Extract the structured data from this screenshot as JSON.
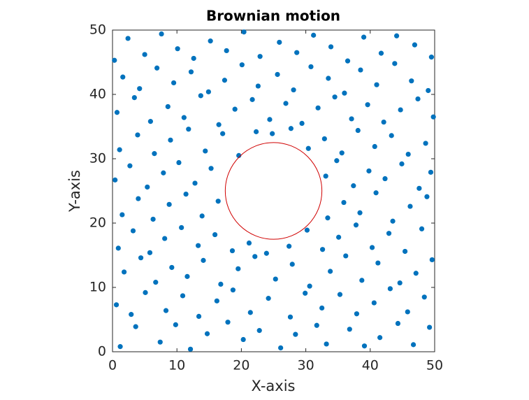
{
  "chart_data": {
    "type": "scatter",
    "title": "Brownian motion",
    "x_label": "X-axis",
    "y_label": "Y-axis",
    "xlim": [
      0,
      50
    ],
    "ylim": [
      0,
      50
    ],
    "xticks": [
      0,
      10,
      20,
      30,
      40,
      50
    ],
    "yticks": [
      0,
      10,
      20,
      30,
      40,
      50
    ],
    "color": "#0072bd",
    "x": [
      1.2,
      3.6,
      7.4,
      9.8,
      12.1,
      14.7,
      17.9,
      20.3,
      22.8,
      26.1,
      28.4,
      31.7,
      33.2,
      36.8,
      39.1,
      41.5,
      44.3,
      46.7,
      49.2,
      0.6,
      2.9,
      5.1,
      8.3,
      10.9,
      13.4,
      16.2,
      18.7,
      21.4,
      24.2,
      27.6,
      29.9,
      32.5,
      35.3,
      37.9,
      40.6,
      43.1,
      45.8,
      48.4,
      1.8,
      4.4,
      6.7,
      9.2,
      11.6,
      14.1,
      16.8,
      19.5,
      22.1,
      25.3,
      27.9,
      30.6,
      33.8,
      36.2,
      38.7,
      41.2,
      44.6,
      47.1,
      49.6,
      0.9,
      3.2,
      5.8,
      8.1,
      10.7,
      13.3,
      15.9,
      18.6,
      21.2,
      23.9,
      27.4,
      30.2,
      32.6,
      35.1,
      37.8,
      40.3,
      42.9,
      45.4,
      48.0,
      1.5,
      4.0,
      6.3,
      8.8,
      11.4,
      13.9,
      16.4,
      33.4,
      35.9,
      38.4,
      40.9,
      43.5,
      46.2,
      48.8,
      0.4,
      2.7,
      5.4,
      7.9,
      10.3,
      12.8,
      15.3,
      33.1,
      34.8,
      37.4,
      39.8,
      42.3,
      44.9,
      47.6,
      49.4,
      1.1,
      3.9,
      6.5,
      9.0,
      11.8,
      14.4,
      17.1,
      19.6,
      22.3,
      24.8,
      27.7,
      30.4,
      32.9,
      35.6,
      38.1,
      40.7,
      43.3,
      45.9,
      48.6,
      0.7,
      3.4,
      5.9,
      8.6,
      11.1,
      13.7,
      16.5,
      19.0,
      21.7,
      24.4,
      26.9,
      29.4,
      31.9,
      34.5,
      37.1,
      39.6,
      42.1,
      44.7,
      47.4,
      49.8,
      1.6,
      4.2,
      6.9,
      9.5,
      12.2,
      14.9,
      17.4,
      20.1,
      22.6,
      25.6,
      28.1,
      30.8,
      33.5,
      36.0,
      38.5,
      41.0,
      43.8,
      46.4,
      49.0,
      0.3,
      2.4,
      5.0,
      7.6,
      10.1,
      12.6,
      15.2,
      17.7,
      20.4,
      22.9,
      25.9,
      28.6,
      31.2,
      33.9,
      36.5,
      39.0,
      41.7,
      44.1,
      46.9,
      49.5
    ],
    "values": [
      0.8,
      3.9,
      1.5,
      4.2,
      0.4,
      2.8,
      4.6,
      1.9,
      3.3,
      0.6,
      2.7,
      4.1,
      1.2,
      3.5,
      0.9,
      2.2,
      4.4,
      1.1,
      3.8,
      7.3,
      5.8,
      9.2,
      6.4,
      8.7,
      5.5,
      7.9,
      9.6,
      6.1,
      8.3,
      5.4,
      9.1,
      6.8,
      8.9,
      5.9,
      7.6,
      9.8,
      6.2,
      8.5,
      12.4,
      14.6,
      10.8,
      13.1,
      11.7,
      14.2,
      10.5,
      12.9,
      14.8,
      11.3,
      13.6,
      10.2,
      12.5,
      14.9,
      11.1,
      13.8,
      10.7,
      12.2,
      14.3,
      16.1,
      18.8,
      15.4,
      17.6,
      19.3,
      16.5,
      18.2,
      15.7,
      16.9,
      15.3,
      16.4,
      18.9,
      15.9,
      17.8,
      19.7,
      16.2,
      18.4,
      15.6,
      19.1,
      21.3,
      23.8,
      20.6,
      22.9,
      24.5,
      21.1,
      23.4,
      20.8,
      23.2,
      21.6,
      24.7,
      20.3,
      22.6,
      24.1,
      26.7,
      28.9,
      25.6,
      27.8,
      29.4,
      26.2,
      28.5,
      27.3,
      29.7,
      25.8,
      28.1,
      26.9,
      29.2,
      25.4,
      27.9,
      31.4,
      33.7,
      30.8,
      32.9,
      34.6,
      31.2,
      33.9,
      30.5,
      34.2,
      33.9,
      34.7,
      31.6,
      33.1,
      30.9,
      34.4,
      31.9,
      33.6,
      30.7,
      32.4,
      37.2,
      39.5,
      35.8,
      38.1,
      36.4,
      39.8,
      35.3,
      37.7,
      39.2,
      36.1,
      38.6,
      35.5,
      37.9,
      39.6,
      36.2,
      38.4,
      35.7,
      37.6,
      39.3,
      36.5,
      42.7,
      40.9,
      44.1,
      41.8,
      43.5,
      40.4,
      42.2,
      44.6,
      41.3,
      43.1,
      40.7,
      44.3,
      42.5,
      40.2,
      43.8,
      41.5,
      44.8,
      42.1,
      40.6,
      45.3,
      48.7,
      46.2,
      49.4,
      47.1,
      45.6,
      48.3,
      46.8,
      49.7,
      45.9,
      48.1,
      46.5,
      49.2,
      47.4,
      45.2,
      48.9,
      46.4,
      49.1,
      47.7,
      45.8
    ],
    "circle": {
      "cx": 25,
      "cy": 25,
      "r": 7.5,
      "color": "#d00000"
    }
  }
}
